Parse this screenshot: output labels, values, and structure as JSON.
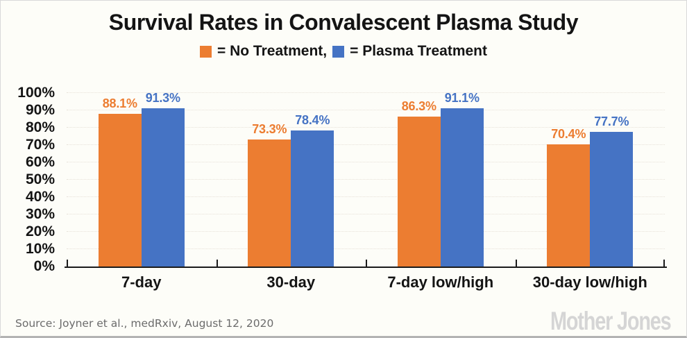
{
  "title": "Survival Rates in Convalescent Plasma Study",
  "legend": {
    "no_treatment_label": "= No Treatment,",
    "plasma_label": "= Plasma Treatment"
  },
  "colors": {
    "no_treatment": "#EC7D31",
    "plasma_treatment": "#4573C4",
    "title_text": "#141414",
    "gridline": "#e7e1d8",
    "axis": "#1a1a1a",
    "background": "#fdfdf8",
    "source_text": "#6b6b6b",
    "logo_text": "#d5d5d5"
  },
  "chart_data": {
    "type": "bar",
    "title": "Survival Rates in Convalescent Plasma Study",
    "categories": [
      "7-day",
      "30-day",
      "7-day low/high",
      "30-day low/high"
    ],
    "series": [
      {
        "name": "No Treatment",
        "color_key": "no_treatment",
        "values": [
          88.1,
          73.3,
          86.3,
          70.4
        ]
      },
      {
        "name": "Plasma Treatment",
        "color_key": "plasma_treatment",
        "values": [
          91.3,
          78.4,
          91.1,
          77.7
        ]
      }
    ],
    "value_label_suffix": "%",
    "y_axis": {
      "min": 0,
      "max": 100,
      "step": 10,
      "tick_suffix": "%"
    },
    "grid": true,
    "legend_position": "top"
  },
  "source": "Source: Joyner et al., medRxiv, August 12, 2020",
  "logo": "Mother Jones"
}
